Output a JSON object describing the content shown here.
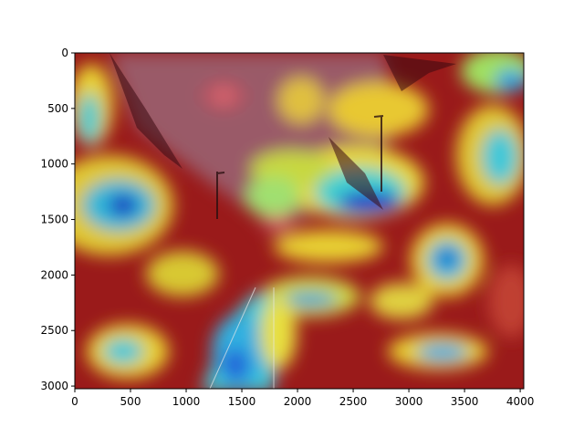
{
  "figure": {
    "type": "image-with-heatmap-overlay",
    "x_axis": {
      "range": [
        0,
        4032
      ],
      "ticks": [
        {
          "value": 0,
          "label": "0"
        },
        {
          "value": 500,
          "label": "500"
        },
        {
          "value": 1000,
          "label": "1000"
        },
        {
          "value": 1500,
          "label": "1500"
        },
        {
          "value": 2000,
          "label": "2000"
        },
        {
          "value": 2500,
          "label": "2500"
        },
        {
          "value": 3000,
          "label": "3000"
        },
        {
          "value": 3500,
          "label": "3500"
        },
        {
          "value": 4000,
          "label": "4000"
        }
      ]
    },
    "y_axis": {
      "range": [
        0,
        3024
      ],
      "inverted": true,
      "ticks": [
        {
          "value": 0,
          "label": "0"
        },
        {
          "value": 500,
          "label": "500"
        },
        {
          "value": 1000,
          "label": "1000"
        },
        {
          "value": 1500,
          "label": "1500"
        },
        {
          "value": 2000,
          "label": "2000"
        },
        {
          "value": 2500,
          "label": "2500"
        },
        {
          "value": 3000,
          "label": "3000"
        }
      ]
    },
    "colormap": "jet",
    "colors": {
      "background": "#ffffff",
      "hot": "#8b0000",
      "warm": "#d62020",
      "mid": "#f0d020",
      "cool": "#20c8d8",
      "cold": "#1020c0"
    }
  }
}
